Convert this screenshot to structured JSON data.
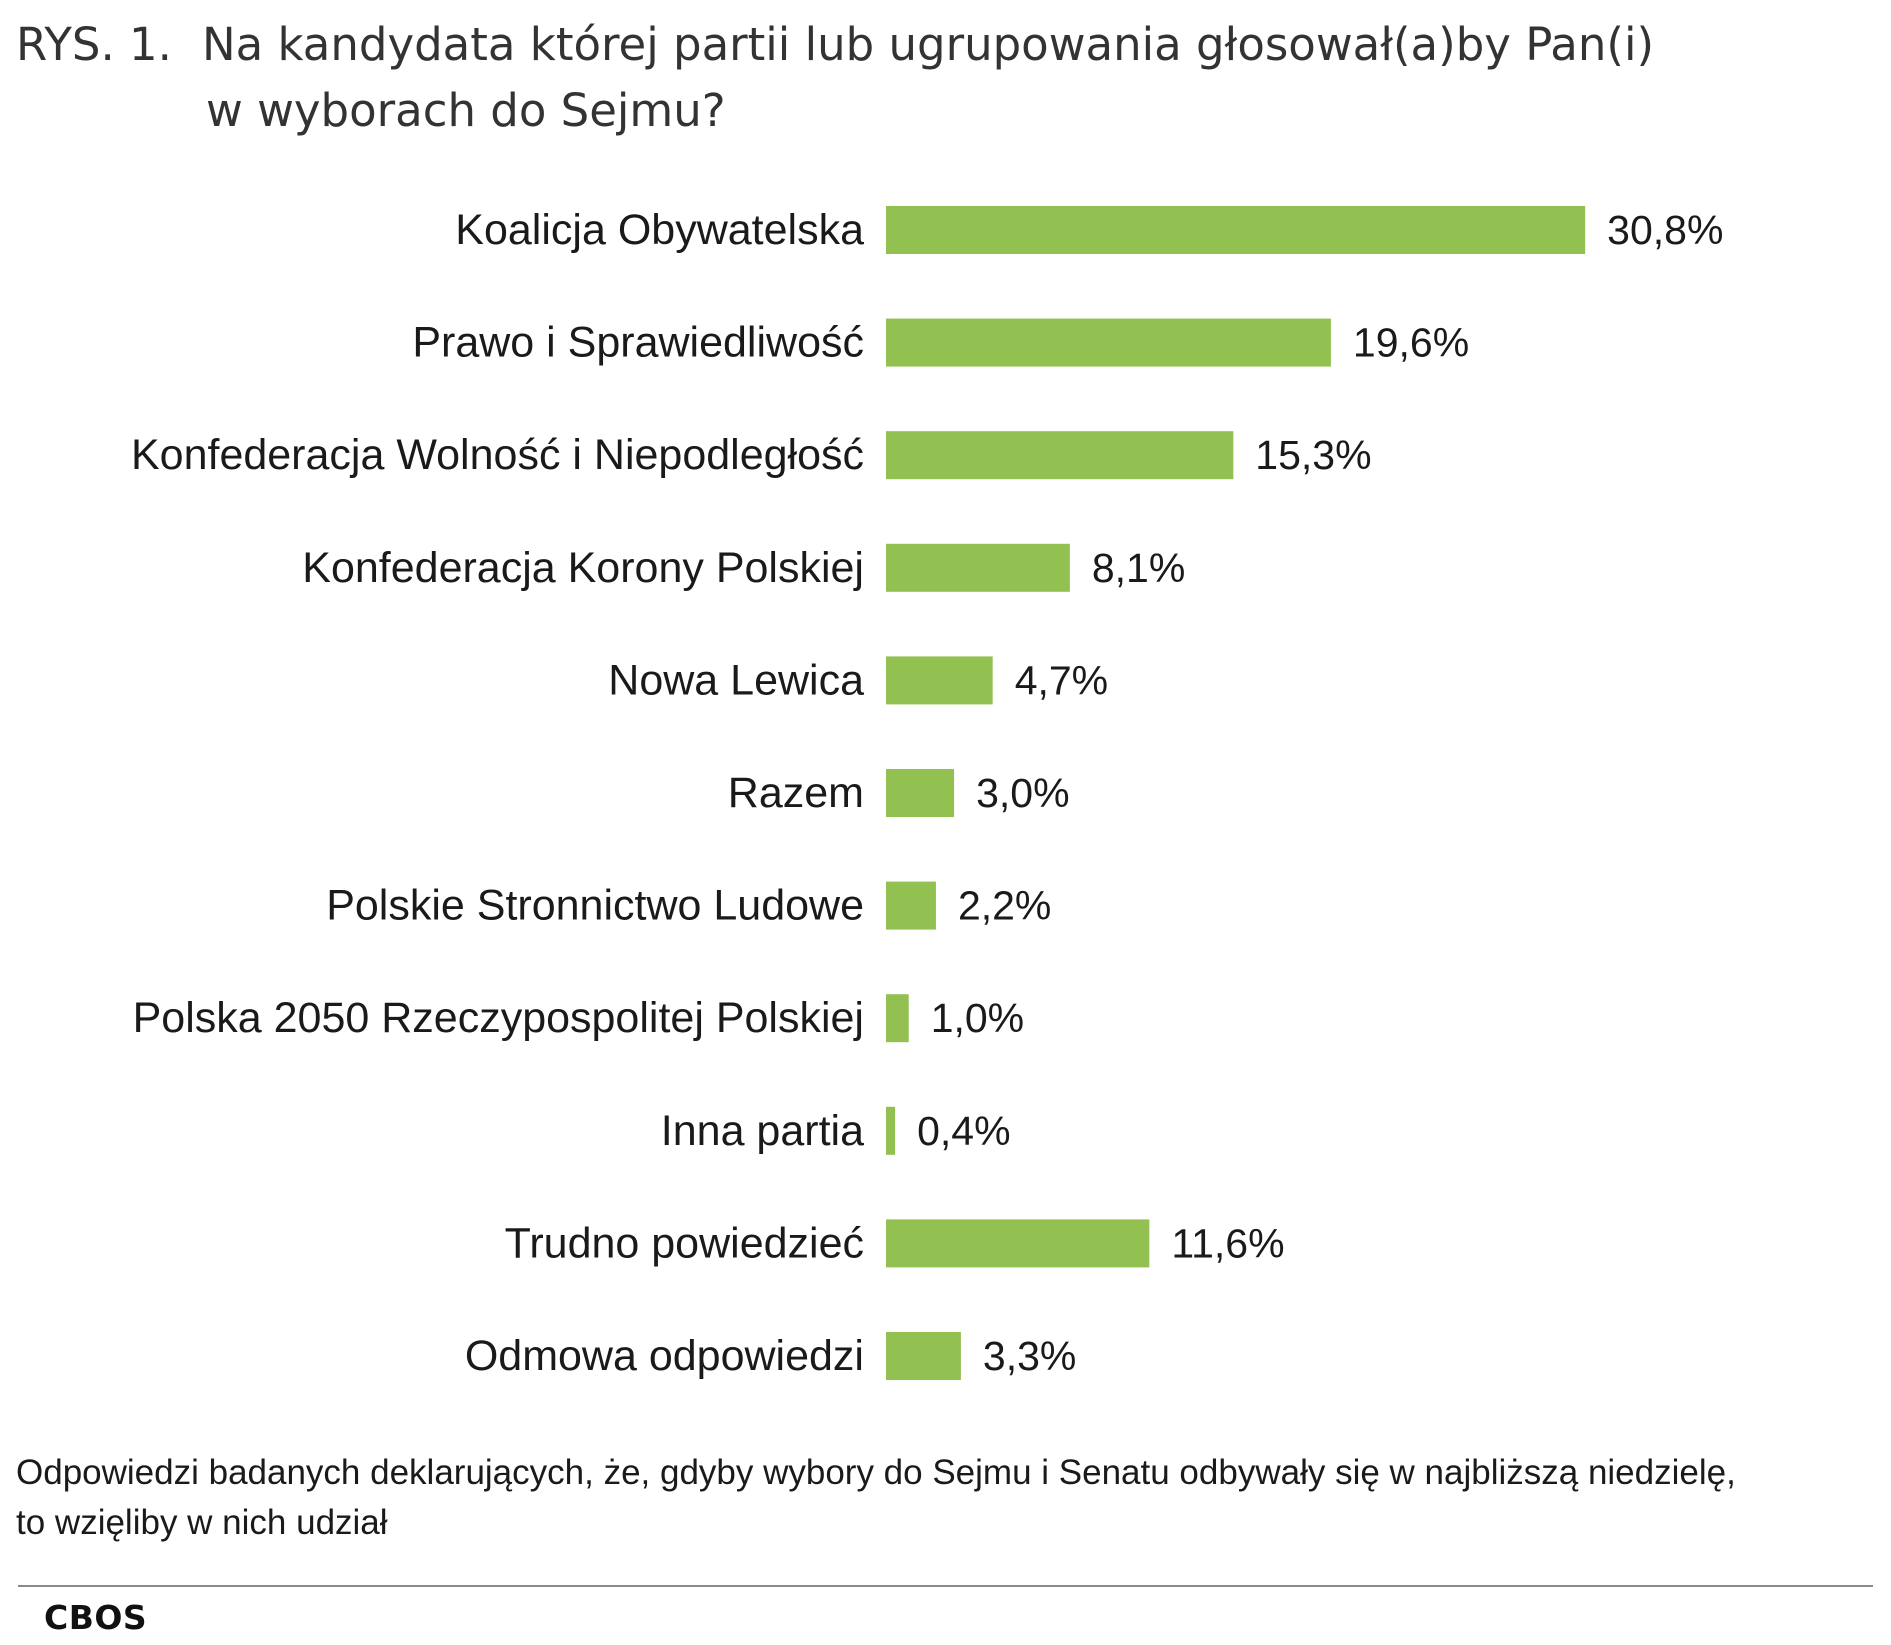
{
  "title": {
    "prefix": "RYS. 1.",
    "line1": "Na kandydata której partii lub ugrupowania głosował(a)by Pan(i)",
    "line2": "w wyborach do Sejmu?"
  },
  "chart_data": {
    "type": "bar",
    "orientation": "horizontal",
    "categories": [
      "Koalicja Obywatelska",
      "Prawo i Sprawiedliwość",
      "Konfederacja Wolność i Niepodległość",
      "Konfederacja Korony Polskiej",
      "Nowa Lewica",
      "Razem",
      "Polskie Stronnictwo Ludowe",
      "Polska 2050 Rzeczypospolitej Polskiej",
      "Inna partia",
      "Trudno powiedzieć",
      "Odmowa odpowiedzi"
    ],
    "values": [
      30.8,
      19.6,
      15.3,
      8.1,
      4.7,
      3.0,
      2.2,
      1.0,
      0.4,
      11.6,
      3.3
    ],
    "value_labels": [
      "30,8%",
      "19,6%",
      "15,3%",
      "8,1%",
      "4,7%",
      "3,0%",
      "2,2%",
      "1,0%",
      "0,4%",
      "11,6%",
      "3,3%"
    ],
    "unit": "%",
    "bar_color": "#92c051",
    "axis_visible": false,
    "grid": false
  },
  "note": {
    "line1": "Odpowiedzi badanych deklarujących, że, gdyby wybory do Sejmu i Senatu odbywały się w najbliższą niedzielę,",
    "line2": "to wzięliby w nich udział"
  },
  "source": "CBOS"
}
